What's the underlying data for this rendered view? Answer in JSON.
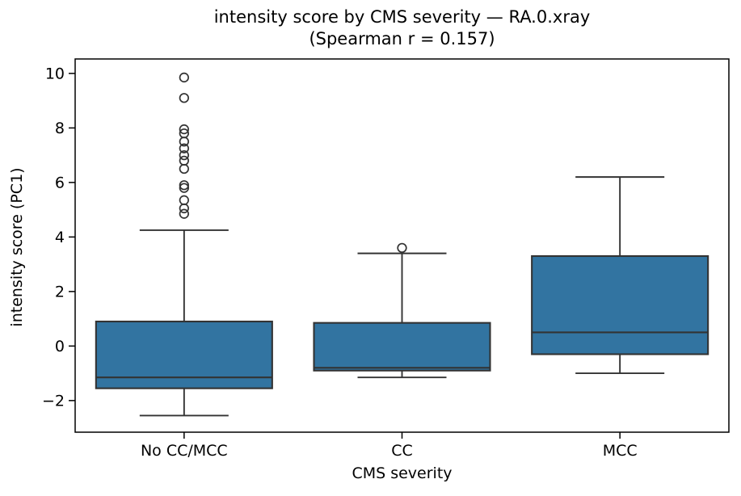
{
  "figure": {
    "title_line1": "intensity score by CMS severity — RA.0.xray",
    "title_line2": "(Spearman r = 0.157)"
  },
  "chart_data": {
    "type": "boxplot",
    "title": "intensity score by CMS severity — RA.0.xray\n(Spearman r = 0.157)",
    "subtitle": "(Spearman r = 0.157)",
    "spearman_r": 0.157,
    "xlabel": "CMS severity",
    "ylabel": "intensity score (PC1)",
    "categories": [
      "No CC/MCC",
      "CC",
      "MCC"
    ],
    "x_tick_labels": [
      "No CC/MCC",
      "CC",
      "MCC"
    ],
    "y_ticks": [
      -2,
      0,
      2,
      4,
      6,
      8,
      10
    ],
    "y_tick_labels": [
      "−2",
      "0",
      "2",
      "4",
      "6",
      "8",
      "10"
    ],
    "ylim": [
      -3.16,
      10.53
    ],
    "grid": false,
    "legend": null,
    "series": [
      {
        "category": "No CC/MCC",
        "whisker_low": -2.55,
        "q1": -1.55,
        "median": -1.15,
        "q3": 0.9,
        "whisker_high": 4.25,
        "outliers": [
          4.85,
          5.05,
          5.35,
          5.8,
          5.9,
          6.5,
          6.8,
          7.0,
          7.25,
          7.5,
          7.8,
          7.95,
          9.1,
          9.85
        ]
      },
      {
        "category": "CC",
        "whisker_low": -1.15,
        "q1": -0.9,
        "median": -0.8,
        "q3": 0.85,
        "whisker_high": 3.4,
        "outliers": [
          3.6
        ]
      },
      {
        "category": "MCC",
        "whisker_low": -1.0,
        "q1": -0.3,
        "median": 0.5,
        "q3": 3.3,
        "whisker_high": 6.2,
        "outliers": []
      }
    ],
    "colors": {
      "box_fill": "#3274a1",
      "box_edge": "#333333",
      "median": "#333333",
      "whisker": "#333333",
      "flier_edge": "#333333",
      "spine": "#000000",
      "text": "#000000",
      "background": "#ffffff"
    }
  }
}
